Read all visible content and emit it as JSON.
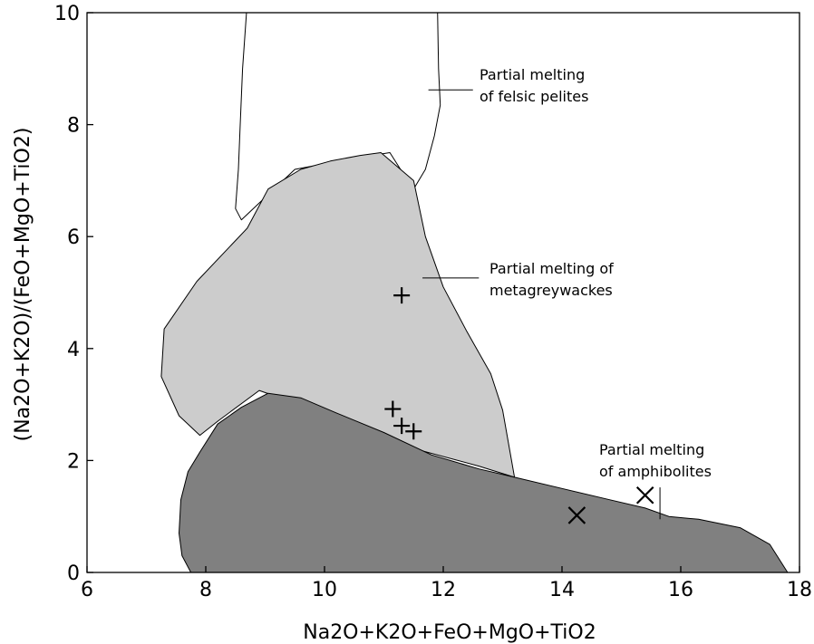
{
  "chart_data": {
    "type": "scatter",
    "title": "",
    "xlabel": "Na2O+K2O+FeO+MgO+TiO2",
    "ylabel": "(Na2O+K2O)/(FeO+MgO+TiO2)",
    "xlim": [
      6,
      18
    ],
    "ylim": [
      0,
      10
    ],
    "grid": false,
    "x_ticks": [
      "6",
      "8",
      "10",
      "12",
      "14",
      "16",
      "18"
    ],
    "y_ticks": [
      "0",
      "2",
      "4",
      "6",
      "8",
      "10"
    ],
    "fields": [
      {
        "name": "felsic-pelites",
        "label": [
          "Partial melting",
          "of felsic pelites"
        ],
        "fill": "none",
        "polygon": [
          [
            8.7,
            10.2
          ],
          [
            8.62,
            9.0
          ],
          [
            8.58,
            8.0
          ],
          [
            8.55,
            7.2
          ],
          [
            8.5,
            6.5
          ],
          [
            8.6,
            6.3
          ],
          [
            9.5,
            7.2
          ],
          [
            10.5,
            7.4
          ],
          [
            11.1,
            7.5
          ],
          [
            11.4,
            7.0
          ],
          [
            11.5,
            6.85
          ],
          [
            11.7,
            7.2
          ],
          [
            11.85,
            7.8
          ],
          [
            11.95,
            8.35
          ],
          [
            11.92,
            9.0
          ],
          [
            11.9,
            10.2
          ]
        ]
      },
      {
        "name": "metagreywackes",
        "label": [
          "Partial melting of",
          "metagreywackes"
        ],
        "fill": "#cccccc",
        "polygon": [
          [
            7.3,
            4.35
          ],
          [
            7.85,
            5.2
          ],
          [
            8.7,
            6.15
          ],
          [
            9.05,
            6.85
          ],
          [
            9.6,
            7.2
          ],
          [
            10.1,
            7.35
          ],
          [
            10.6,
            7.45
          ],
          [
            10.95,
            7.5
          ],
          [
            11.5,
            7.0
          ],
          [
            11.7,
            6.0
          ],
          [
            12.0,
            5.1
          ],
          [
            12.4,
            4.3
          ],
          [
            12.8,
            3.55
          ],
          [
            13.0,
            2.9
          ],
          [
            13.2,
            1.7
          ],
          [
            12.6,
            1.9
          ],
          [
            11.2,
            2.3
          ],
          [
            10.0,
            2.75
          ],
          [
            9.3,
            3.1
          ],
          [
            8.9,
            3.25
          ],
          [
            8.2,
            2.7
          ],
          [
            7.9,
            2.45
          ],
          [
            7.55,
            2.8
          ],
          [
            7.25,
            3.5
          ]
        ]
      },
      {
        "name": "amphibolites",
        "label": [
          "Partial melting",
          "of amphibolites"
        ],
        "fill": "#808080",
        "polygon": [
          [
            7.75,
            0.0
          ],
          [
            7.6,
            0.3
          ],
          [
            7.55,
            0.7
          ],
          [
            7.58,
            1.3
          ],
          [
            7.7,
            1.8
          ],
          [
            7.9,
            2.15
          ],
          [
            8.2,
            2.65
          ],
          [
            8.6,
            2.95
          ],
          [
            9.05,
            3.2
          ],
          [
            9.6,
            3.12
          ],
          [
            10.2,
            2.85
          ],
          [
            11.0,
            2.5
          ],
          [
            11.8,
            2.1
          ],
          [
            12.6,
            1.85
          ],
          [
            13.2,
            1.7
          ],
          [
            14.0,
            1.5
          ],
          [
            14.8,
            1.3
          ],
          [
            15.4,
            1.15
          ],
          [
            15.8,
            1.0
          ],
          [
            16.3,
            0.95
          ],
          [
            17.0,
            0.8
          ],
          [
            17.5,
            0.5
          ],
          [
            17.8,
            0.0
          ]
        ]
      }
    ],
    "series": [
      {
        "marker": "plus",
        "x": [
          11.3,
          11.15,
          11.3,
          11.5
        ],
        "y": [
          4.95,
          2.92,
          2.62,
          2.52
        ]
      },
      {
        "marker": "x",
        "x": [
          14.25,
          15.4
        ],
        "y": [
          1.02,
          1.38
        ]
      }
    ]
  }
}
